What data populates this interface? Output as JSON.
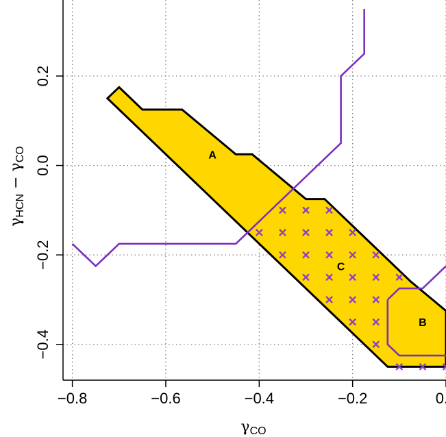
{
  "chart_data": {
    "type": "scatter",
    "xlabel": {
      "base": "γ",
      "sub": "CO"
    },
    "ylabel": {
      "base1": "γ",
      "sub1": "HCN",
      "minus": " − ",
      "base2": "γ",
      "sub2": "CO"
    },
    "xlim": [
      -0.82,
      0.0
    ],
    "ylim": [
      -0.48,
      0.37
    ],
    "x_ticks": [
      -0.8,
      -0.6,
      -0.4,
      -0.2,
      0.0
    ],
    "x_tick_labels": [
      "−0.8",
      "−0.6",
      "−0.4",
      "−0.2",
      "0.0"
    ],
    "y_ticks": [
      -0.4,
      -0.2,
      0.0,
      0.2
    ],
    "y_tick_labels": [
      "−0.4",
      "−0.2",
      "0.0",
      "0.2"
    ],
    "grid": true,
    "colors": {
      "fill": "#FFD700",
      "outline": "#000000",
      "line": "#7B2FBE",
      "marker": "#8B3FC9",
      "grid": "#808080"
    },
    "region": {
      "outline": [
        [
          -0.7,
          0.175
        ],
        [
          -0.65,
          0.125
        ],
        [
          -0.565,
          0.125
        ],
        [
          -0.45,
          0.025
        ],
        [
          -0.415,
          0.025
        ],
        [
          -0.3,
          -0.075
        ],
        [
          -0.26,
          -0.075
        ],
        [
          -0.075,
          -0.26
        ],
        [
          -0.0,
          -0.325
        ],
        [
          0.0,
          -0.45
        ],
        [
          -0.125,
          -0.45
        ],
        [
          -0.725,
          0.15
        ]
      ]
    },
    "region_labels": [
      {
        "text": "A",
        "x": -0.5,
        "y": 0.025
      },
      {
        "text": "C",
        "x": -0.225,
        "y": -0.225
      },
      {
        "text": "B",
        "x": -0.05,
        "y": -0.35
      }
    ],
    "boundary_lines": [
      {
        "points": [
          [
            -0.8,
            -0.175
          ],
          [
            -0.75,
            -0.225
          ],
          [
            -0.7,
            -0.175
          ],
          [
            -0.45,
            -0.175
          ],
          [
            -0.225,
            0.05
          ],
          [
            -0.225,
            0.2
          ],
          [
            -0.175,
            0.25
          ],
          [
            -0.175,
            0.35
          ]
        ]
      },
      {
        "points": [
          [
            -0.125,
            -0.3
          ],
          [
            -0.125,
            -0.4
          ],
          [
            -0.1,
            -0.425
          ],
          [
            0.0,
            -0.425
          ]
        ]
      },
      {
        "points": [
          [
            -0.125,
            -0.3
          ],
          [
            -0.1,
            -0.275
          ],
          [
            -0.05,
            -0.275
          ],
          [
            0.0,
            -0.225
          ]
        ]
      }
    ],
    "points": [
      [
        -0.35,
        -0.1
      ],
      [
        -0.3,
        -0.1
      ],
      [
        -0.25,
        -0.1
      ],
      [
        -0.4,
        -0.15
      ],
      [
        -0.35,
        -0.15
      ],
      [
        -0.3,
        -0.15
      ],
      [
        -0.25,
        -0.15
      ],
      [
        -0.2,
        -0.15
      ],
      [
        -0.35,
        -0.2
      ],
      [
        -0.3,
        -0.2
      ],
      [
        -0.25,
        -0.2
      ],
      [
        -0.2,
        -0.2
      ],
      [
        -0.15,
        -0.2
      ],
      [
        -0.3,
        -0.25
      ],
      [
        -0.25,
        -0.25
      ],
      [
        -0.2,
        -0.25
      ],
      [
        -0.15,
        -0.25
      ],
      [
        -0.1,
        -0.25
      ],
      [
        -0.25,
        -0.3
      ],
      [
        -0.2,
        -0.3
      ],
      [
        -0.15,
        -0.3
      ],
      [
        -0.2,
        -0.35
      ],
      [
        -0.15,
        -0.35
      ],
      [
        -0.15,
        -0.4
      ],
      [
        -0.1,
        -0.45
      ],
      [
        -0.05,
        -0.45
      ],
      [
        0.0,
        -0.45
      ]
    ]
  }
}
